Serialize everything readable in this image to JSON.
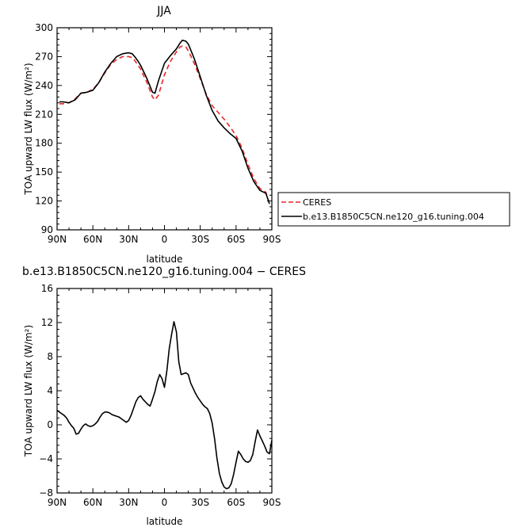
{
  "chart_data": [
    {
      "type": "line",
      "title": "JJA",
      "xlabel": "latitude",
      "ylabel": "TOA upward LW flux (W/m²)",
      "xlim": [
        -90,
        90
      ],
      "ylim": [
        90,
        300
      ],
      "x_ticks": [
        -90,
        -60,
        -30,
        0,
        30,
        60,
        90
      ],
      "x_tick_labels": [
        "90N",
        "60N",
        "30N",
        "0",
        "30S",
        "60S",
        "90S"
      ],
      "y_ticks": [
        90,
        120,
        150,
        180,
        210,
        240,
        270,
        300
      ],
      "y_tick_labels": [
        "90",
        "120",
        "150",
        "180",
        "210",
        "240",
        "270",
        "300"
      ],
      "grid": false,
      "legend_position": "right",
      "series": [
        {
          "name": "CERES",
          "color": "#e8262a",
          "style": "dashed",
          "x": [
            -88,
            -85,
            -80,
            -75,
            -70,
            -65,
            -60,
            -55,
            -50,
            -45,
            -40,
            -35,
            -30,
            -27,
            -25,
            -22,
            -20,
            -15,
            -10,
            -8,
            -5,
            0,
            5,
            10,
            13,
            15,
            18,
            20,
            25,
            30,
            35,
            40,
            45,
            50,
            55,
            60,
            65,
            70,
            75,
            80,
            85,
            88
          ],
          "y": [
            221,
            221,
            222,
            226,
            232,
            233,
            236,
            243,
            253,
            262,
            267,
            270,
            270,
            269,
            266,
            261,
            257,
            244,
            228,
            225,
            230,
            251,
            265,
            275,
            280,
            281,
            280,
            276,
            263,
            247,
            231,
            219,
            212,
            205,
            197,
            188,
            175,
            158,
            143,
            133,
            129,
            117
          ]
        },
        {
          "name": "b.e13.B1850C5CN.ne120_g16.tuning.004",
          "color": "#000000",
          "style": "solid",
          "x": [
            -88,
            -85,
            -80,
            -75,
            -70,
            -65,
            -60,
            -55,
            -50,
            -45,
            -40,
            -35,
            -30,
            -27,
            -25,
            -22,
            -20,
            -15,
            -10,
            -8,
            -5,
            0,
            5,
            10,
            13,
            15,
            18,
            20,
            25,
            30,
            35,
            40,
            45,
            50,
            55,
            60,
            65,
            70,
            75,
            80,
            85,
            88
          ],
          "y": [
            223,
            223,
            222,
            225,
            232,
            233,
            235,
            243,
            254,
            263,
            270,
            273,
            274,
            273,
            270,
            265,
            261,
            248,
            233,
            232,
            245,
            263,
            271,
            278,
            284,
            287,
            286,
            283,
            268,
            249,
            230,
            214,
            203,
            196,
            190,
            185,
            172,
            154,
            140,
            131,
            128,
            117
          ]
        }
      ]
    },
    {
      "type": "line",
      "title": "b.e13.B1850C5CN.ne120_g16.tuning.004 − CERES",
      "xlabel": "latitude",
      "ylabel": "TOA upward LW flux (W/m²)",
      "xlim": [
        -90,
        90
      ],
      "ylim": [
        -8,
        16
      ],
      "x_ticks": [
        -90,
        -60,
        -30,
        0,
        30,
        60,
        90
      ],
      "x_tick_labels": [
        "90N",
        "60N",
        "30N",
        "0",
        "30S",
        "60S",
        "90S"
      ],
      "y_ticks": [
        -8,
        -4,
        0,
        4,
        8,
        12,
        16
      ],
      "y_tick_labels": [
        "−8",
        "−4",
        "0",
        "4",
        "8",
        "12",
        "16"
      ],
      "grid": false,
      "series": [
        {
          "name": "",
          "color": "#000000",
          "style": "solid",
          "x": [
            -90,
            -87,
            -84,
            -82,
            -80,
            -78,
            -76,
            -74,
            -72,
            -70,
            -68,
            -66,
            -64,
            -62,
            -60,
            -58,
            -56,
            -54,
            -52,
            -50,
            -48,
            -46,
            -44,
            -42,
            -40,
            -38,
            -36,
            -34,
            -32,
            -30,
            -28,
            -26,
            -24,
            -22,
            -20,
            -18,
            -16,
            -14,
            -12,
            -10,
            -8,
            -6,
            -4,
            -2,
            0,
            2,
            4,
            6,
            8,
            10,
            12,
            14,
            16,
            18,
            20,
            22,
            24,
            26,
            28,
            30,
            32,
            34,
            36,
            38,
            40,
            42,
            44,
            46,
            48,
            50,
            52,
            54,
            56,
            58,
            60,
            62,
            64,
            66,
            68,
            70,
            72,
            74,
            76,
            78,
            80,
            82,
            84,
            86,
            88,
            90
          ],
          "y": [
            1.7,
            1.4,
            1.1,
            0.8,
            0.3,
            -0.1,
            -0.4,
            -1.1,
            -1.0,
            -0.5,
            -0.1,
            0.1,
            -0.1,
            -0.2,
            -0.1,
            0.1,
            0.4,
            0.9,
            1.3,
            1.5,
            1.5,
            1.4,
            1.2,
            1.1,
            1.0,
            0.9,
            0.7,
            0.5,
            0.3,
            0.5,
            1.1,
            1.9,
            2.7,
            3.2,
            3.4,
            3.0,
            2.7,
            2.4,
            2.2,
            3.0,
            3.9,
            5.1,
            5.9,
            5.4,
            4.4,
            6.3,
            8.9,
            10.6,
            12.1,
            10.9,
            7.4,
            5.9,
            6.0,
            6.1,
            5.9,
            4.9,
            4.3,
            3.7,
            3.2,
            2.8,
            2.4,
            2.1,
            1.9,
            1.3,
            0.2,
            -1.6,
            -3.9,
            -5.7,
            -6.7,
            -7.3,
            -7.5,
            -7.4,
            -6.9,
            -5.8,
            -4.4,
            -3.1,
            -3.5,
            -4.0,
            -4.3,
            -4.4,
            -4.2,
            -3.5,
            -2.0,
            -0.6,
            -1.3,
            -1.9,
            -2.5,
            -3.2,
            -3.4,
            -1.8
          ]
        }
      ]
    }
  ]
}
